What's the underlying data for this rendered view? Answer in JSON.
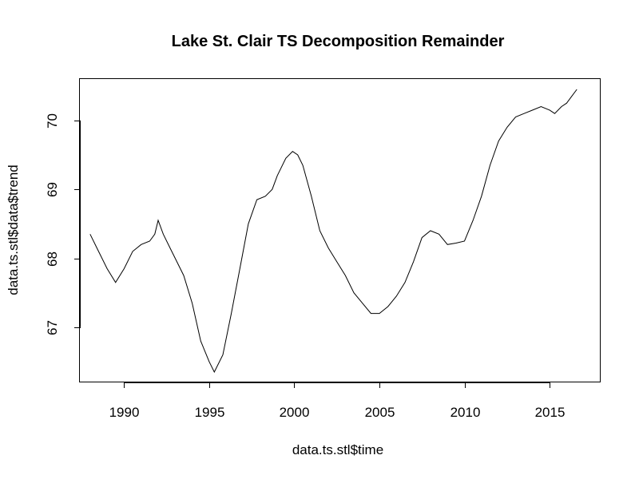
{
  "chart_data": {
    "type": "line",
    "title": "Lake St. Clair TS Decomposition Remainder",
    "xlabel": "data.ts.stl$time",
    "ylabel": "data.ts.stl$data$trend",
    "xlim": [
      1987.4,
      2018.0
    ],
    "ylim": [
      66.2,
      70.6
    ],
    "xticks": [
      1990,
      1995,
      2000,
      2005,
      2010,
      2015
    ],
    "yticks": [
      67,
      68,
      69,
      70
    ],
    "grid": false,
    "legend": "none",
    "series": [
      {
        "x": [
          1988.0,
          1988.5,
          1989.0,
          1989.5,
          1990.0,
          1990.5,
          1991.0,
          1991.5,
          1991.8,
          1992.0,
          1992.3,
          1992.7,
          1993.0,
          1993.5,
          1994.0,
          1994.5,
          1995.0,
          1995.3,
          1995.8,
          1996.3,
          1996.8,
          1997.3,
          1997.8,
          1998.3,
          1998.7,
          1999.0,
          1999.5,
          1999.9,
          2000.2,
          2000.5,
          2001.0,
          2001.5,
          2002.0,
          2002.5,
          2003.0,
          2003.5,
          2004.0,
          2004.5,
          2005.0,
          2005.5,
          2006.0,
          2006.5,
          2007.0,
          2007.5,
          2008.0,
          2008.5,
          2009.0,
          2009.5,
          2010.0,
          2010.5,
          2011.0,
          2011.5,
          2012.0,
          2012.5,
          2013.0,
          2013.5,
          2014.0,
          2014.5,
          2015.0,
          2015.3,
          2015.7,
          2016.0,
          2016.3,
          2016.6
        ],
        "y": [
          68.35,
          68.1,
          67.85,
          67.65,
          67.85,
          68.1,
          68.2,
          68.25,
          68.35,
          68.55,
          68.35,
          68.15,
          68.0,
          67.75,
          67.35,
          66.8,
          66.5,
          66.35,
          66.6,
          67.2,
          67.85,
          68.5,
          68.85,
          68.9,
          69.0,
          69.2,
          69.45,
          69.55,
          69.5,
          69.35,
          68.9,
          68.4,
          68.15,
          67.95,
          67.75,
          67.5,
          67.35,
          67.2,
          67.2,
          67.3,
          67.45,
          67.65,
          67.95,
          68.3,
          68.4,
          68.35,
          68.2,
          68.22,
          68.25,
          68.55,
          68.9,
          69.35,
          69.7,
          69.9,
          70.05,
          70.1,
          70.15,
          70.2,
          70.15,
          70.1,
          70.2,
          70.25,
          70.35,
          70.45
        ]
      }
    ]
  }
}
